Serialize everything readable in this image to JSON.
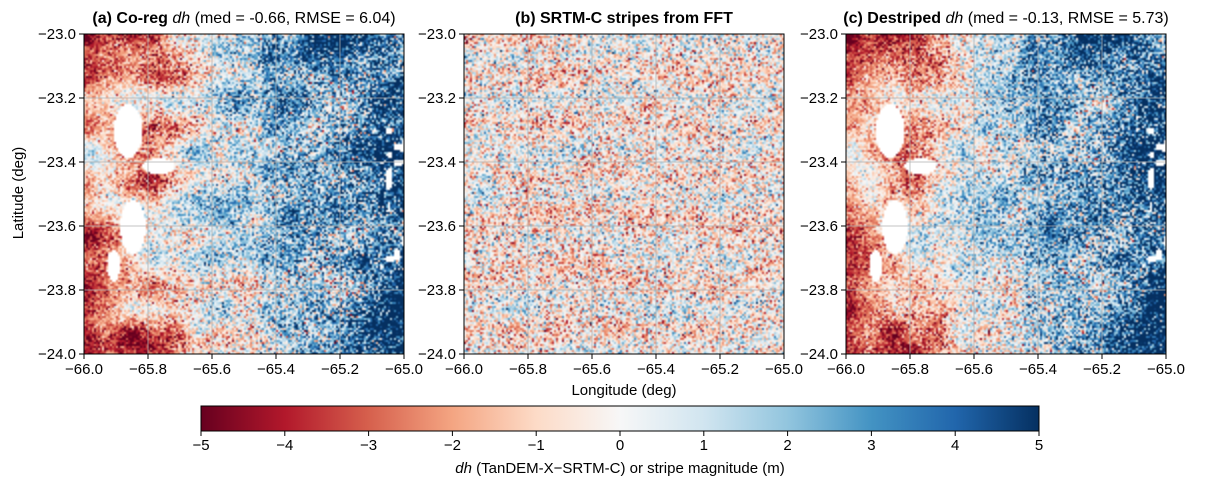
{
  "chart_data": {
    "type": "heatmap",
    "panels": [
      {
        "id": "a",
        "title_prefix": "(a) Co-reg ",
        "title_var": "dh",
        "title_stats": " (med = -0.66, RMSE = 6.04)",
        "median": -0.66,
        "rmse": 6.04,
        "xlim": [
          -66.0,
          -65.0
        ],
        "ylim": [
          -24.0,
          -23.0
        ],
        "x_ticks": [
          "−66.0",
          "−65.8",
          "−65.6",
          "−65.4",
          "−65.2",
          "−65.0"
        ],
        "y_ticks": [
          "−23.0",
          "−23.2",
          "−23.4",
          "−23.6",
          "−23.8",
          "−24.0"
        ],
        "grid": true,
        "has_nodata_voids": true
      },
      {
        "id": "b",
        "title_prefix": "(b) SRTM-C stripes from FFT",
        "title_var": "",
        "title_stats": "",
        "xlim": [
          -66.0,
          -65.0
        ],
        "ylim": [
          -24.0,
          -23.0
        ],
        "x_ticks": [
          "−66.0",
          "−65.8",
          "−65.6",
          "−65.4",
          "−65.2",
          "−65.0"
        ],
        "y_ticks": [
          "−23.0",
          "−23.2",
          "−23.4",
          "−23.6",
          "−23.8",
          "−24.0"
        ],
        "grid": true,
        "has_nodata_voids": false
      },
      {
        "id": "c",
        "title_prefix": "(c) Destriped ",
        "title_var": "dh",
        "title_stats": " (med = -0.13, RMSE = 5.73)",
        "median": -0.13,
        "rmse": 5.73,
        "xlim": [
          -66.0,
          -65.0
        ],
        "ylim": [
          -24.0,
          -23.0
        ],
        "x_ticks": [
          "−66.0",
          "−65.8",
          "−65.6",
          "−65.4",
          "−65.2",
          "−65.0"
        ],
        "y_ticks": [
          "−23.0",
          "−23.2",
          "−23.4",
          "−23.6",
          "−23.8",
          "−24.0"
        ],
        "grid": true,
        "has_nodata_voids": true
      }
    ],
    "xlabel": "Longitude (deg)",
    "ylabel": "Latitude (deg)",
    "colorbar": {
      "colormap": "RdBu",
      "range": [
        -5,
        5
      ],
      "ticks": [
        "−5",
        "−4",
        "−3",
        "−2",
        "−1",
        "0",
        "1",
        "2",
        "3",
        "4",
        "5"
      ],
      "label_var": "dh",
      "label_rest": " (TanDEM-X−SRTM-C) or  stripe magnitude (m)",
      "colors": [
        "#67001f",
        "#b2182b",
        "#d6604d",
        "#f4a582",
        "#fddbc7",
        "#f7f7f7",
        "#d1e5f0",
        "#92c5de",
        "#4393c3",
        "#2166ac",
        "#053061"
      ]
    }
  }
}
